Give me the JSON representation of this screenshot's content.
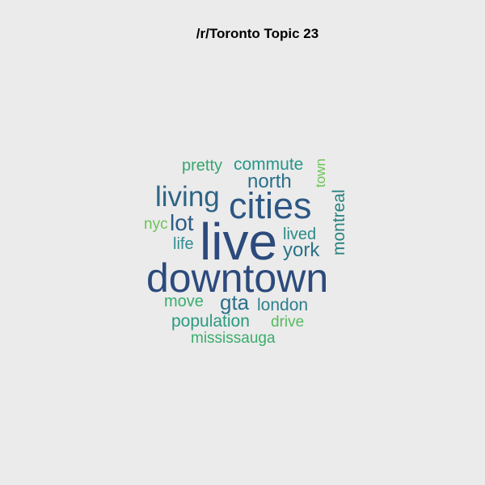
{
  "title": "/r/Toronto Topic 23",
  "words": [
    {
      "text": "live",
      "color": "#2c4a7c"
    },
    {
      "text": "downtown",
      "color": "#2c4a7c"
    },
    {
      "text": "cities",
      "color": "#2d5784"
    },
    {
      "text": "living",
      "color": "#2e6487"
    },
    {
      "text": "north",
      "color": "#2a6f8a"
    },
    {
      "text": "commute",
      "color": "#27958a"
    },
    {
      "text": "pretty",
      "color": "#35a66e"
    },
    {
      "text": "town",
      "color": "#6cc357"
    },
    {
      "text": "montreal",
      "color": "#26817d"
    },
    {
      "text": "lot",
      "color": "#2b5d86"
    },
    {
      "text": "nyc",
      "color": "#6cc357"
    },
    {
      "text": "life",
      "color": "#2f8d94"
    },
    {
      "text": "lived",
      "color": "#2a8a86"
    },
    {
      "text": "york",
      "color": "#2a7287"
    },
    {
      "text": "move",
      "color": "#3aad70"
    },
    {
      "text": "gta",
      "color": "#2b6f8a"
    },
    {
      "text": "london",
      "color": "#2b7f8d"
    },
    {
      "text": "population",
      "color": "#2a9a7d"
    },
    {
      "text": "drive",
      "color": "#55bb5f"
    },
    {
      "text": "mississauga",
      "color": "#3aad6c"
    }
  ]
}
